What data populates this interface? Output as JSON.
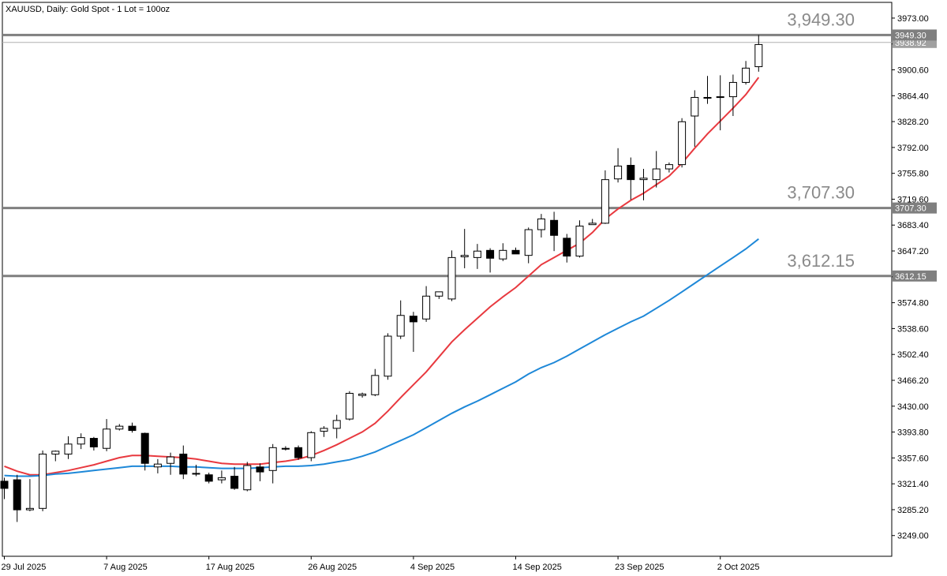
{
  "chart_title": "XAUUSD, Daily:  Gold  Spot - 1 Lot = 100oz",
  "chart_data": {
    "type": "candlestick",
    "symbol": "XAUUSD",
    "timeframe": "Daily",
    "y_range": [
      3220,
      3995
    ],
    "y_ticks": [
      "3973.00",
      "3936.80",
      "3900.60",
      "3864.40",
      "3828.20",
      "3792.00",
      "3755.80",
      "3719.60",
      "3683.40",
      "3647.20",
      "3611.00",
      "3574.80",
      "3538.60",
      "3502.40",
      "3466.20",
      "3430.00",
      "3393.80",
      "3357.60",
      "3321.40",
      "3285.20",
      "3249.00"
    ],
    "x_labels": [
      {
        "index": 0,
        "label": "29 Jul 2025"
      },
      {
        "index": 8,
        "label": "7 Aug 2025"
      },
      {
        "index": 16,
        "label": "17 Aug 2025"
      },
      {
        "index": 24,
        "label": "26 Aug 2025"
      },
      {
        "index": 32,
        "label": "4 Sep 2025"
      },
      {
        "index": 40,
        "label": "14 Sep 2025"
      },
      {
        "index": 48,
        "label": "23 Sep 2025"
      },
      {
        "index": 56,
        "label": "2 Oct 2025"
      }
    ],
    "candles": [
      {
        "o": 3325,
        "h": 3330,
        "l": 3300,
        "c": 3315
      },
      {
        "o": 3327,
        "h": 3334,
        "l": 3268,
        "c": 3285
      },
      {
        "o": 3285,
        "h": 3328,
        "l": 3283,
        "c": 3287
      },
      {
        "o": 3287,
        "h": 3368,
        "l": 3283,
        "c": 3363
      },
      {
        "o": 3363,
        "h": 3368,
        "l": 3353,
        "c": 3367
      },
      {
        "o": 3363,
        "h": 3388,
        "l": 3356,
        "c": 3377
      },
      {
        "o": 3377,
        "h": 3392,
        "l": 3370,
        "c": 3386
      },
      {
        "o": 3385,
        "h": 3387,
        "l": 3368,
        "c": 3373
      },
      {
        "o": 3371,
        "h": 3412,
        "l": 3367,
        "c": 3398
      },
      {
        "o": 3398,
        "h": 3405,
        "l": 3396,
        "c": 3402
      },
      {
        "o": 3402,
        "h": 3407,
        "l": 3393,
        "c": 3396
      },
      {
        "o": 3392,
        "h": 3393,
        "l": 3340,
        "c": 3350
      },
      {
        "o": 3345,
        "h": 3356,
        "l": 3336,
        "c": 3349
      },
      {
        "o": 3350,
        "h": 3365,
        "l": 3334,
        "c": 3359
      },
      {
        "o": 3363,
        "h": 3375,
        "l": 3328,
        "c": 3335
      },
      {
        "o": 3336,
        "h": 3348,
        "l": 3332,
        "c": 3336
      },
      {
        "o": 3334,
        "h": 3337,
        "l": 3322,
        "c": 3325
      },
      {
        "o": 3327,
        "h": 3340,
        "l": 3322,
        "c": 3330
      },
      {
        "o": 3332,
        "h": 3345,
        "l": 3313,
        "c": 3315
      },
      {
        "o": 3313,
        "h": 3352,
        "l": 3311,
        "c": 3347
      },
      {
        "o": 3345,
        "h": 3350,
        "l": 3325,
        "c": 3338
      },
      {
        "o": 3340,
        "h": 3377,
        "l": 3322,
        "c": 3372
      },
      {
        "o": 3371,
        "h": 3374,
        "l": 3368,
        "c": 3370
      },
      {
        "o": 3372,
        "h": 3375,
        "l": 3355,
        "c": 3358
      },
      {
        "o": 3358,
        "h": 3395,
        "l": 3353,
        "c": 3393
      },
      {
        "o": 3395,
        "h": 3402,
        "l": 3387,
        "c": 3399
      },
      {
        "o": 3399,
        "h": 3418,
        "l": 3385,
        "c": 3410
      },
      {
        "o": 3412,
        "h": 3451,
        "l": 3410,
        "c": 3448
      },
      {
        "o": 3445,
        "h": 3449,
        "l": 3442,
        "c": 3447
      },
      {
        "o": 3446,
        "h": 3482,
        "l": 3444,
        "c": 3473
      },
      {
        "o": 3472,
        "h": 3532,
        "l": 3467,
        "c": 3528
      },
      {
        "o": 3528,
        "h": 3578,
        "l": 3524,
        "c": 3557
      },
      {
        "o": 3556,
        "h": 3562,
        "l": 3506,
        "c": 3548
      },
      {
        "o": 3552,
        "h": 3598,
        "l": 3548,
        "c": 3584
      },
      {
        "o": 3584,
        "h": 3590,
        "l": 3580,
        "c": 3590
      },
      {
        "o": 3580,
        "h": 3648,
        "l": 3577,
        "c": 3638
      },
      {
        "o": 3639,
        "h": 3678,
        "l": 3623,
        "c": 3641
      },
      {
        "o": 3638,
        "h": 3657,
        "l": 3622,
        "c": 3647
      },
      {
        "o": 3648,
        "h": 3651,
        "l": 3617,
        "c": 3637
      },
      {
        "o": 3636,
        "h": 3658,
        "l": 3633,
        "c": 3648
      },
      {
        "o": 3648,
        "h": 3652,
        "l": 3643,
        "c": 3643
      },
      {
        "o": 3641,
        "h": 3680,
        "l": 3630,
        "c": 3677
      },
      {
        "o": 3677,
        "h": 3699,
        "l": 3666,
        "c": 3692
      },
      {
        "o": 3690,
        "h": 3702,
        "l": 3647,
        "c": 3669
      },
      {
        "o": 3665,
        "h": 3671,
        "l": 3631,
        "c": 3640
      },
      {
        "o": 3640,
        "h": 3690,
        "l": 3638,
        "c": 3682
      },
      {
        "o": 3684,
        "h": 3692,
        "l": 3684,
        "c": 3686
      },
      {
        "o": 3686,
        "h": 3760,
        "l": 3685,
        "c": 3747
      },
      {
        "o": 3748,
        "h": 3791,
        "l": 3743,
        "c": 3766
      },
      {
        "o": 3767,
        "h": 3778,
        "l": 3719,
        "c": 3747
      },
      {
        "o": 3747,
        "h": 3762,
        "l": 3718,
        "c": 3749
      },
      {
        "o": 3747,
        "h": 3787,
        "l": 3736,
        "c": 3762
      },
      {
        "o": 3762,
        "h": 3771,
        "l": 3757,
        "c": 3768
      },
      {
        "o": 3768,
        "h": 3833,
        "l": 3764,
        "c": 3828
      },
      {
        "o": 3836,
        "h": 3872,
        "l": 3793,
        "c": 3862
      },
      {
        "o": 3861,
        "h": 3892,
        "l": 3853,
        "c": 3862
      },
      {
        "o": 3862,
        "h": 3893,
        "l": 3816,
        "c": 3863
      },
      {
        "o": 3863,
        "h": 3894,
        "l": 3836,
        "c": 3883
      },
      {
        "o": 3883,
        "h": 3913,
        "l": 3880,
        "c": 3903
      },
      {
        "o": 3905,
        "h": 3949.3,
        "l": 3898,
        "c": 3936
      }
    ],
    "ma_red": {
      "color": "#e8393f",
      "values": [
        3346,
        3339,
        3334,
        3334,
        3337,
        3340,
        3344,
        3348,
        3353,
        3358,
        3361,
        3361,
        3360,
        3359,
        3358,
        3356,
        3353,
        3350,
        3349,
        3349,
        3349,
        3351,
        3353,
        3356,
        3361,
        3368,
        3376,
        3385,
        3394,
        3406,
        3423,
        3442,
        3460,
        3478,
        3499,
        3520,
        3537,
        3553,
        3569,
        3583,
        3596,
        3612,
        3628,
        3638,
        3648,
        3658,
        3673,
        3692,
        3706,
        3718,
        3728,
        3740,
        3752,
        3770,
        3791,
        3811,
        3829,
        3847,
        3866,
        3890
      ]
    },
    "ma_blue": {
      "color": "#1e88d8",
      "values": [
        3333,
        3332,
        3332,
        3333,
        3335,
        3336,
        3338,
        3340,
        3342,
        3344,
        3346,
        3346,
        3346,
        3346,
        3345,
        3345,
        3344,
        3343,
        3343,
        3343,
        3344,
        3345,
        3346,
        3346,
        3347,
        3349,
        3352,
        3355,
        3360,
        3366,
        3374,
        3382,
        3390,
        3400,
        3410,
        3420,
        3429,
        3437,
        3446,
        3455,
        3464,
        3475,
        3484,
        3491,
        3500,
        3510,
        3520,
        3530,
        3539,
        3548,
        3556,
        3567,
        3578,
        3590,
        3602,
        3614,
        3626,
        3638,
        3650,
        3664
      ]
    },
    "horizontal_lines": [
      {
        "value": 3949.3,
        "label": "3,949.30",
        "tag": "3949.30"
      },
      {
        "value": 3707.3,
        "label": "3,707.30",
        "tag": "3707.30"
      },
      {
        "value": 3612.15,
        "label": "3,612.15",
        "tag": "3612.15"
      }
    ],
    "current_price": {
      "value": 3938.92,
      "tag": "3938.92"
    },
    "colors": {
      "up_fill": "#ffffff",
      "down_fill": "#000000",
      "candle_stroke": "#000000",
      "level_line": "#7f7f7f",
      "tag_bg": "#7f7f7f"
    }
  }
}
